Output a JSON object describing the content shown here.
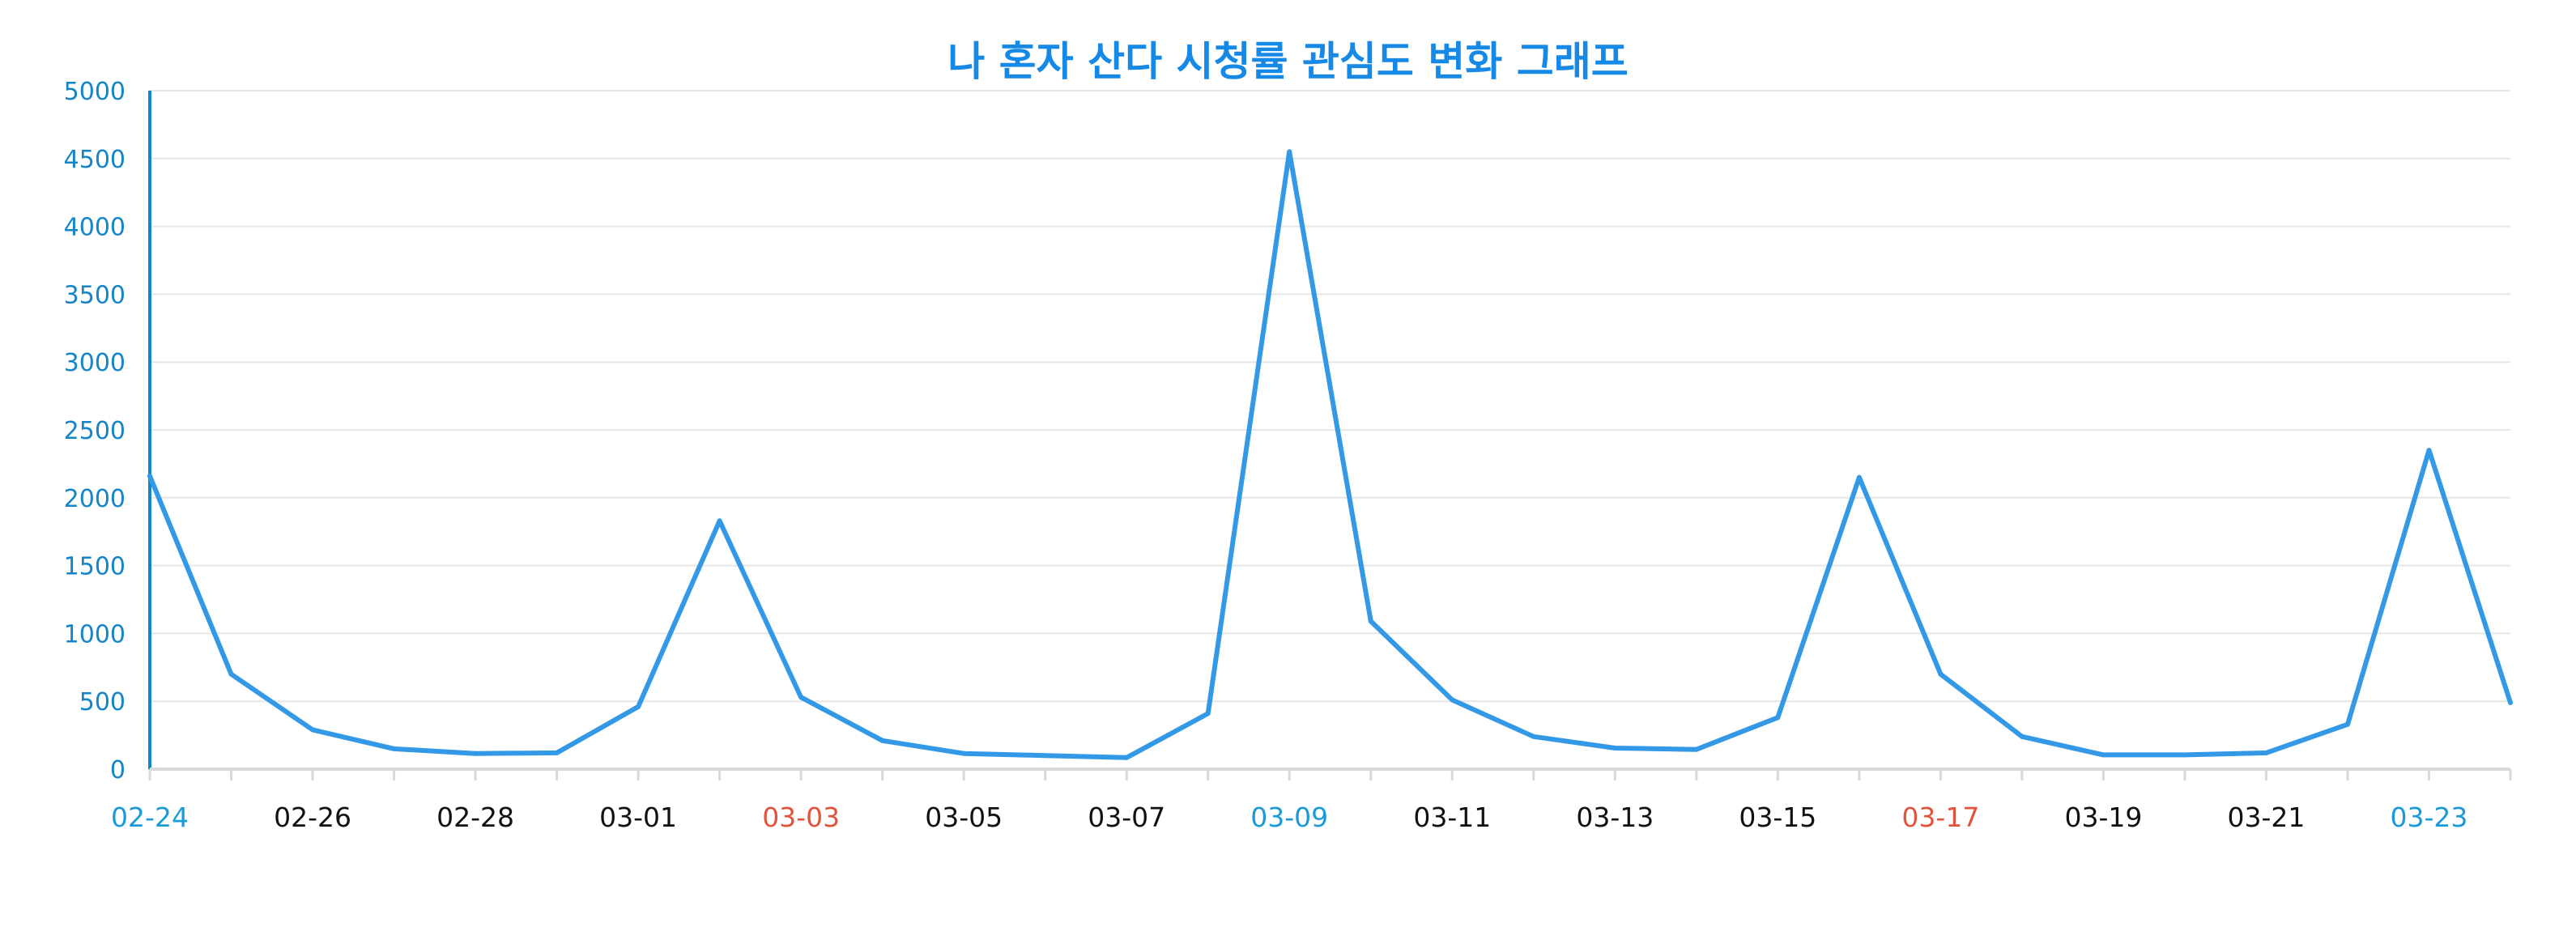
{
  "chart_data": {
    "type": "line",
    "title": "나 혼자 산다 시청률 관심도 변화 그래프",
    "xlabel": "",
    "ylabel": "",
    "ylim": [
      0,
      5000
    ],
    "yticks": [
      0,
      500,
      1000,
      1500,
      2000,
      2500,
      3000,
      3500,
      4000,
      4500,
      5000
    ],
    "grid": true,
    "legend": "none",
    "line_color": "#3399e6",
    "tick_label_colors": {
      "default": "#111111",
      "highlight_blue": "#1a9ad9",
      "highlight_red": "#e2533b",
      "yaxis": "#1585c9"
    },
    "x_tick_labels": [
      {
        "label": "02-24",
        "color": "blue"
      },
      {
        "label": "02-26",
        "color": "default"
      },
      {
        "label": "02-28",
        "color": "default"
      },
      {
        "label": "03-01",
        "color": "default"
      },
      {
        "label": "03-03",
        "color": "red"
      },
      {
        "label": "03-05",
        "color": "default"
      },
      {
        "label": "03-07",
        "color": "default"
      },
      {
        "label": "03-09",
        "color": "blue"
      },
      {
        "label": "03-11",
        "color": "default"
      },
      {
        "label": "03-13",
        "color": "default"
      },
      {
        "label": "03-15",
        "color": "default"
      },
      {
        "label": "03-17",
        "color": "red"
      },
      {
        "label": "03-19",
        "color": "default"
      },
      {
        "label": "03-21",
        "color": "default"
      },
      {
        "label": "03-23",
        "color": "blue"
      }
    ],
    "series": [
      {
        "values": [
          2160,
          700,
          290,
          150,
          115,
          120,
          460,
          1830,
          530,
          210,
          115,
          100,
          85,
          410,
          4550,
          1090,
          510,
          240,
          155,
          145,
          380,
          2150,
          700,
          240,
          105,
          105,
          120,
          330,
          2350,
          490
        ]
      }
    ]
  }
}
